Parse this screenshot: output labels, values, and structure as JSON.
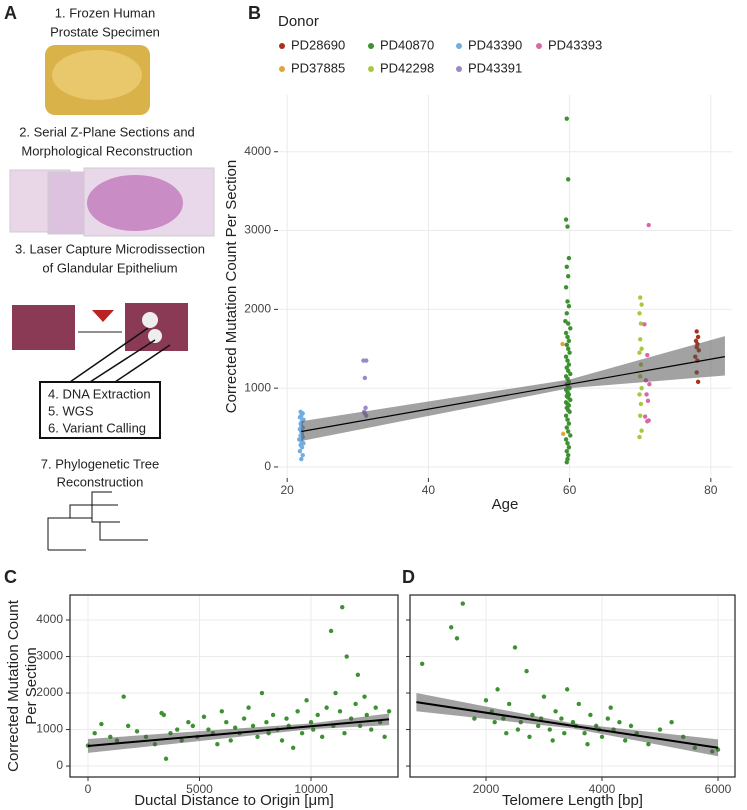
{
  "panel_a": {
    "label": "A",
    "steps": [
      "1. Frozen Human",
      "Prostate Specimen",
      "2. Serial Z-Plane Sections and",
      "Morphological Reconstruction",
      "3. Laser Capture Microdissection",
      "of Glandular Epithelium",
      "4. DNA Extraction",
      "5. WGS",
      "6. Variant Calling",
      "7. Phylogenetic Tree",
      "Reconstruction"
    ]
  },
  "chart_data": [
    {
      "type": "scatter",
      "panel_label": "B",
      "legend_title": "Donor",
      "x_label": "Age",
      "y_label": "Corrected Mutation Count Per Section",
      "xlim": [
        18.7,
        83
      ],
      "ylim": [
        -140,
        4720
      ],
      "xticks": [
        20,
        40,
        60,
        80
      ],
      "yticks": [
        0,
        1000,
        2000,
        3000,
        4000
      ],
      "grid": true,
      "frame": false,
      "series": [
        {
          "name": "PD28690",
          "color": "#a8321d",
          "x": [
            78,
            78.2,
            77.9,
            78.1,
            78,
            78.3,
            77.8,
            78.1,
            78,
            78.2
          ],
          "values": [
            1720,
            1650,
            1600,
            1560,
            1520,
            1480,
            1400,
            1350,
            1200,
            1080
          ]
        },
        {
          "name": "PD37885",
          "color": "#e3a33a",
          "x": [
            59,
            59.1
          ],
          "values": [
            1560,
            420
          ]
        },
        {
          "name": "PD40870",
          "color": "#3c9130",
          "x": [
            59.6,
            59.8,
            59.5,
            59.7,
            59.9,
            59.6,
            59.8,
            59.5,
            59.7,
            59.9,
            59.6,
            59.4,
            59.8,
            60.1,
            59.5,
            59.7,
            59.9,
            59.6,
            59.8,
            60,
            59.5,
            59.7,
            59.9,
            59.6,
            59.8,
            60.1,
            59.5,
            59.7,
            59.9,
            59.6,
            59.8,
            60,
            59.5,
            59.7,
            59.9,
            59.6,
            59.8,
            60.1,
            59.5,
            59.7,
            59.9,
            59.6,
            59.8,
            60,
            59.5,
            59.7,
            59.9,
            59.6,
            59.8,
            60.1,
            59.5,
            59.7,
            59.9,
            59.6,
            59.8,
            59.7,
            59.6
          ],
          "values": [
            4420,
            3650,
            3140,
            3050,
            2650,
            2540,
            2420,
            2280,
            2100,
            2040,
            1950,
            1850,
            1820,
            1760,
            1700,
            1650,
            1600,
            1550,
            1500,
            1450,
            1400,
            1350,
            1300,
            1260,
            1220,
            1180,
            1150,
            1120,
            1080,
            1050,
            1020,
            1000,
            980,
            950,
            920,
            900,
            880,
            850,
            820,
            800,
            780,
            750,
            720,
            700,
            650,
            600,
            550,
            500,
            450,
            400,
            350,
            300,
            250,
            200,
            150,
            100,
            60
          ]
        },
        {
          "name": "PD42298",
          "color": "#a6c93d",
          "x": [
            70,
            70.2,
            69.9,
            70.1,
            70,
            70.2,
            69.9,
            70.1,
            70,
            70.2,
            69.9,
            70.1,
            70,
            70.2,
            69.9
          ],
          "values": [
            2150,
            2060,
            1950,
            1820,
            1620,
            1500,
            1450,
            1300,
            1150,
            1000,
            920,
            800,
            650,
            460,
            380
          ]
        },
        {
          "name": "PD43390",
          "color": "#72ade0",
          "x": [
            22,
            22.2,
            21.8,
            22.1,
            21.9,
            22.3,
            22,
            21.7,
            22.2,
            21.9,
            22.1,
            22,
            21.8,
            22.2,
            22,
            21.9,
            22.1,
            22.3,
            21.8,
            22,
            22.2,
            21.9
          ],
          "values": [
            100,
            150,
            200,
            250,
            280,
            300,
            330,
            350,
            380,
            400,
            420,
            450,
            480,
            500,
            520,
            550,
            580,
            600,
            630,
            650,
            680,
            700
          ]
        },
        {
          "name": "PD43391",
          "color": "#9b87c9",
          "x": [
            30.8,
            31.2,
            31,
            31.1,
            30.9,
            31,
            31.2
          ],
          "values": [
            1350,
            1350,
            1130,
            750,
            700,
            680,
            650
          ]
        },
        {
          "name": "PD43393",
          "color": "#d868a6",
          "x": [
            71.2,
            70.6,
            71,
            70.8,
            71.3,
            70.9,
            71.1,
            70.7,
            71.2,
            71
          ],
          "values": [
            3070,
            1810,
            1420,
            1100,
            1050,
            920,
            840,
            640,
            590,
            580
          ]
        }
      ],
      "fit": {
        "x": [
          22,
          60,
          82
        ],
        "values": [
          450,
          1050,
          1400
        ],
        "lower": [
          330,
          1000,
          1160
        ],
        "upper": [
          580,
          1110,
          1660
        ]
      }
    },
    {
      "type": "scatter",
      "panel_label": "C",
      "x_label": "Ductal Distance to Origin [μm]",
      "y_label": [
        "Corrected Mutation Count",
        "Per Section"
      ],
      "xlim": [
        -807,
        13900
      ],
      "ylim": [
        -300,
        4685
      ],
      "xticks": [
        0,
        5000,
        10000
      ],
      "yticks": [
        0,
        1000,
        2000,
        3000,
        4000
      ],
      "grid": true,
      "frame": true,
      "y_tick_labels": true,
      "series": [
        {
          "color": "#3c9130",
          "x": [
            0,
            300,
            600,
            1000,
            1300,
            1600,
            1800,
            2200,
            2600,
            3000,
            3300,
            3400,
            3500,
            3700,
            4000,
            4200,
            4500,
            4700,
            4900,
            5200,
            5400,
            5600,
            5800,
            6000,
            6200,
            6400,
            6600,
            6800,
            7000,
            7200,
            7400,
            7600,
            7800,
            8000,
            8100,
            8300,
            8500,
            8700,
            8900,
            9000,
            9200,
            9400,
            9600,
            9800,
            10000,
            10100,
            10300,
            10500,
            10700,
            10900,
            11000,
            11100,
            11300,
            11400,
            11500,
            11600,
            11800,
            12000,
            12100,
            12200,
            12400,
            12500,
            12700,
            12900,
            13100,
            13300,
            13500
          ],
          "values": [
            560,
            900,
            1150,
            800,
            700,
            1900,
            1100,
            950,
            800,
            600,
            1450,
            1400,
            200,
            900,
            1000,
            700,
            1200,
            1100,
            800,
            1350,
            1000,
            900,
            600,
            1500,
            1200,
            700,
            1050,
            900,
            1300,
            1600,
            1100,
            800,
            2000,
            1200,
            900,
            1400,
            1000,
            700,
            1300,
            1100,
            500,
            1500,
            900,
            1800,
            1200,
            1000,
            1400,
            800,
            1600,
            3700,
            1100,
            2000,
            1500,
            4350,
            900,
            3000,
            1300,
            1700,
            2500,
            1100,
            1900,
            1400,
            1000,
            1600,
            1200,
            800,
            1500
          ]
        }
      ],
      "fit": {
        "x": [
          0,
          10000,
          13500
        ],
        "values": [
          550,
          1090,
          1280
        ],
        "lower": [
          360,
          1010,
          1120
        ],
        "upper": [
          740,
          1170,
          1440
        ]
      }
    },
    {
      "type": "scatter",
      "panel_label": "D",
      "x_label": "Telomere Length [bp]",
      "xlim": [
        690,
        6293
      ],
      "ylim": [
        -300,
        4685
      ],
      "xticks": [
        2000,
        4000,
        6000
      ],
      "yticks": [
        0,
        1000,
        2000,
        3000,
        4000
      ],
      "grid": true,
      "frame": true,
      "y_tick_labels": false,
      "series": [
        {
          "color": "#3c9130",
          "x": [
            900,
            1400,
            1500,
            1600,
            2000,
            2100,
            2200,
            2300,
            2400,
            2500,
            2600,
            2700,
            2800,
            2900,
            3000,
            3100,
            3200,
            3300,
            3400,
            3500,
            3600,
            3700,
            3800,
            3900,
            4000,
            4100,
            4200,
            4300,
            4400,
            4500,
            4600,
            4800,
            5000,
            5200,
            5400,
            5600,
            5900,
            6000,
            2150,
            2350,
            2550,
            2750,
            2950,
            3150,
            3350,
            3550,
            3750,
            3950,
            4150,
            1800
          ],
          "values": [
            2800,
            3800,
            3500,
            4450,
            1800,
            1500,
            2100,
            1300,
            1700,
            3250,
            1200,
            2600,
            1400,
            1100,
            1900,
            1000,
            1500,
            1300,
            2100,
            1200,
            1700,
            900,
            1400,
            1100,
            800,
            1300,
            1000,
            1200,
            700,
            1100,
            900,
            600,
            1000,
            1200,
            800,
            500,
            400,
            450,
            1200,
            900,
            1000,
            800,
            1300,
            700,
            900,
            1100,
            600,
            1000,
            1600,
            1300
          ]
        }
      ],
      "fit": {
        "x": [
          800,
          3500,
          6000
        ],
        "values": [
          1750,
          1100,
          500
        ],
        "lower": [
          1500,
          1030,
          270
        ],
        "upper": [
          2000,
          1170,
          730
        ]
      }
    }
  ]
}
